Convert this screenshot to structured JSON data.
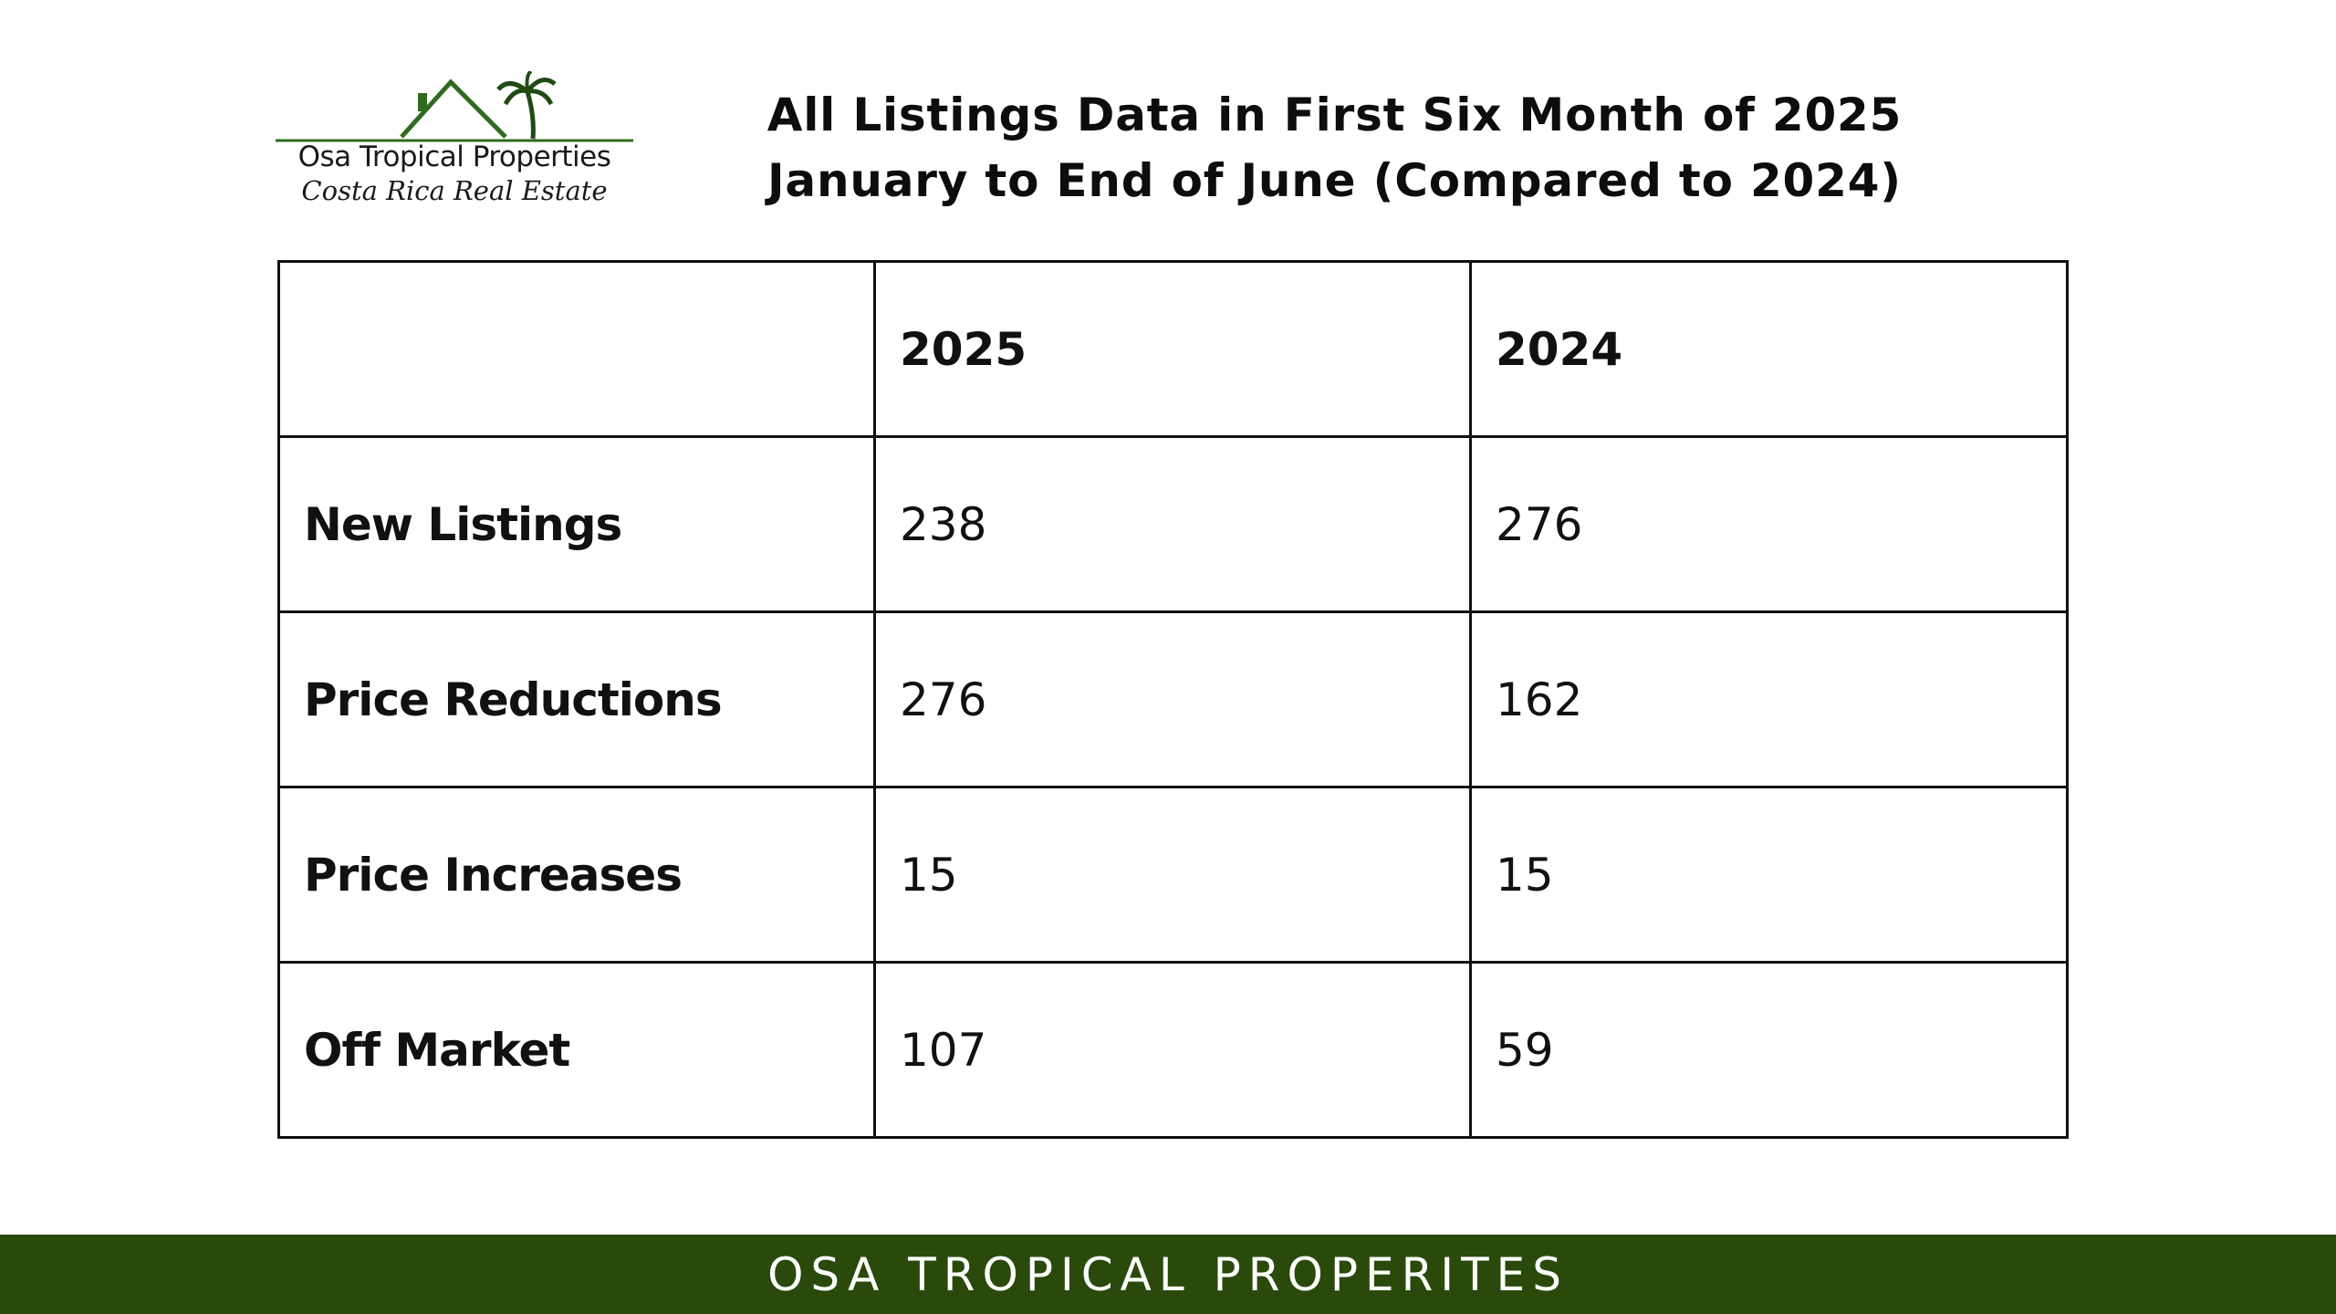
{
  "logo": {
    "name": "Osa Tropical Properties",
    "tagline": "Costa Rica Real Estate"
  },
  "title": {
    "line1": "All Listings Data in First Six Month of 2025",
    "line2": "January to End of June (Compared to 2024)"
  },
  "table": {
    "headers": [
      "",
      "2025",
      "2024"
    ],
    "rows": [
      {
        "label": "New Listings",
        "y2025": "238",
        "y2024": "276"
      },
      {
        "label": "Price Reductions",
        "y2025": "276",
        "y2024": "162"
      },
      {
        "label": "Price Increases",
        "y2025": "15",
        "y2024": "15"
      },
      {
        "label": "Off Market",
        "y2025": "107",
        "y2024": "59"
      }
    ]
  },
  "footer": {
    "text": "OSA TROPICAL PROPERITES"
  },
  "colors": {
    "brand_green": "#2a4a0c",
    "logo_green": "#2f6b1f"
  }
}
